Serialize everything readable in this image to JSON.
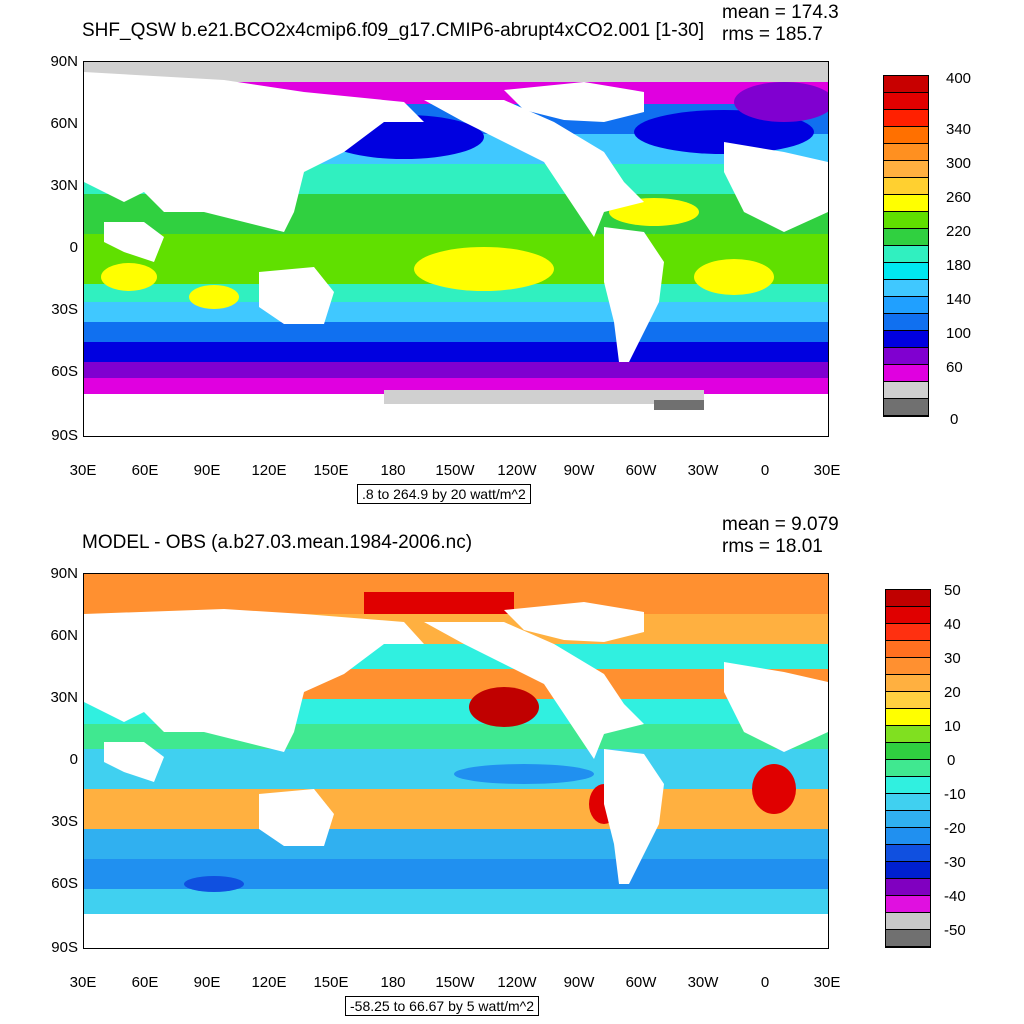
{
  "panels": [
    {
      "title": "SHF_QSW b.e21.BCO2x4cmip6.f09_g17.CMIP6-abrupt4xCO2.001 [1-30]",
      "mean": "mean = 174.3",
      "rms": "rms = 185.7",
      "range_text": ".8 to 264.9 by 20 watt/m^2",
      "lat_labels": [
        "90N",
        "60N",
        "30N",
        "0",
        "30S",
        "60S",
        "90S"
      ],
      "lon_labels": [
        "30E",
        "60E",
        "90E",
        "120E",
        "150E",
        "180",
        "150W",
        "120W",
        "90W",
        "60W",
        "30W",
        "0",
        "30E"
      ],
      "colorbar": {
        "colors": [
          "#c80000",
          "#e10000",
          "#ff2000",
          "#ff7000",
          "#ff9020",
          "#ffb040",
          "#ffd030",
          "#ffff00",
          "#60e000",
          "#30d040",
          "#30f0c0",
          "#00e8f0",
          "#40c8ff",
          "#20a0ff",
          "#1070f0",
          "#0000e0",
          "#8000d0",
          "#e000e0",
          "#d0d0d0",
          "#707070"
        ],
        "labels": [
          "400",
          "340",
          "300",
          "260",
          "220",
          "180",
          "140",
          "100",
          "60",
          "0"
        ]
      }
    },
    {
      "title": "MODEL - OBS (a.b27.03.mean.1984-2006.nc)",
      "mean": "mean = 9.079",
      "rms": "rms = 18.01",
      "range_text": "-58.25 to 66.67 by 5 watt/m^2",
      "lat_labels": [
        "90N",
        "60N",
        "30N",
        "0",
        "30S",
        "60S",
        "90S"
      ],
      "lon_labels": [
        "30E",
        "60E",
        "90E",
        "120E",
        "150E",
        "180",
        "150W",
        "120W",
        "90W",
        "60W",
        "30W",
        "0",
        "30E"
      ],
      "colorbar": {
        "colors": [
          "#c00000",
          "#e00000",
          "#ff3010",
          "#ff7020",
          "#ff9030",
          "#ffb040",
          "#ffd040",
          "#ffff00",
          "#80e020",
          "#30d040",
          "#40e890",
          "#30f0e0",
          "#40d0f0",
          "#30b0f0",
          "#2090f0",
          "#1050e0",
          "#0020d0",
          "#8000c0",
          "#e010e0",
          "#c8c8c8",
          "#707070"
        ],
        "labels": [
          "50",
          "40",
          "30",
          "20",
          "10",
          "0",
          "-10",
          "-20",
          "-30",
          "-40",
          "-50"
        ]
      }
    }
  ]
}
